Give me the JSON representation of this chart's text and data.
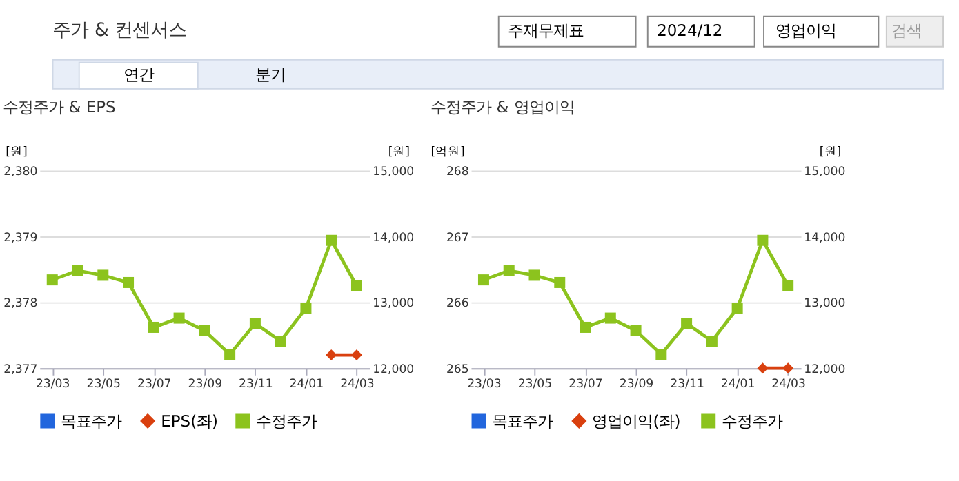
{
  "chart_data": [
    {
      "type": "other",
      "annotations": [
        "주가 & 컨센서스",
        "주재무제표",
        "2024/12",
        "영업이익",
        "검색",
        "연간",
        "분기"
      ]
    },
    {
      "type": "line",
      "title": "수정주가 & EPS",
      "ylabel": "[원]",
      "y2label": "[원]",
      "categories": [
        "23/03",
        null,
        "23/05",
        null,
        "23/07",
        null,
        "23/09",
        null,
        "23/11",
        null,
        "24/01",
        null,
        "24/03"
      ],
      "ylim": [
        2377,
        2380
      ],
      "yticks": [
        {
          "value": 2377,
          "label": "2,377"
        },
        {
          "value": 2378,
          "label": "2,378"
        },
        {
          "value": 2379,
          "label": "2,379"
        },
        {
          "value": 2380,
          "label": "2,380"
        }
      ],
      "y2lim": [
        12000,
        15000
      ],
      "y2ticks": [
        {
          "value": 12000,
          "label": "12,000"
        },
        {
          "value": 13000,
          "label": "13,000"
        },
        {
          "value": 14000,
          "label": "14,000"
        },
        {
          "value": 15000,
          "label": "15,000"
        }
      ],
      "grid": "y",
      "legend": "bottom",
      "series": [
        {
          "name": "목표주가",
          "color": "#2266dd",
          "marker": "square",
          "values": [
            null,
            null,
            null,
            null,
            null,
            null,
            null,
            null,
            null,
            null,
            null,
            null,
            null
          ]
        },
        {
          "name": "EPS(좌)",
          "color": "#d9400f",
          "marker": "diamond",
          "values": [
            null,
            null,
            null,
            null,
            null,
            null,
            null,
            null,
            null,
            null,
            null,
            2377.2,
            2377.2
          ]
        },
        {
          "name": "수정주가",
          "color": "#8cc31e",
          "marker": "square",
          "axis": "y2",
          "values": [
            13340,
            13480,
            13410,
            13300,
            12620,
            12760,
            12570,
            12210,
            12680,
            12410,
            12910,
            13940,
            13250
          ]
        }
      ]
    },
    {
      "type": "line",
      "title": "수정주가 & 영업이익",
      "ylabel": "[억원]",
      "y2label": "[원]",
      "categories": [
        "23/03",
        null,
        "23/05",
        null,
        "23/07",
        null,
        "23/09",
        null,
        "23/11",
        null,
        "24/01",
        null,
        "24/03"
      ],
      "ylim": [
        265,
        268
      ],
      "yticks": [
        265,
        266,
        267,
        268
      ],
      "y2lim": [
        12000,
        15000
      ],
      "y2ticks": [
        {
          "value": 12000,
          "label": "12,000"
        },
        {
          "value": 13000,
          "label": "13,000"
        },
        {
          "value": 14000,
          "label": "14,000"
        },
        {
          "value": 15000,
          "label": "15,000"
        }
      ],
      "grid": "y",
      "legend": "bottom",
      "series": [
        {
          "name": "목표주가",
          "color": "#2266dd",
          "marker": "square",
          "values": [
            null,
            null,
            null,
            null,
            null,
            null,
            null,
            null,
            null,
            null,
            null,
            null,
            null
          ]
        },
        {
          "name": "영업이익(좌)",
          "color": "#d9400f",
          "marker": "diamond",
          "values": [
            null,
            null,
            null,
            null,
            null,
            null,
            null,
            null,
            null,
            null,
            null,
            265,
            265
          ]
        },
        {
          "name": "수정주가",
          "color": "#8cc31e",
          "marker": "square",
          "axis": "y2",
          "values": [
            13340,
            13480,
            13410,
            13300,
            12620,
            12760,
            12570,
            12210,
            12680,
            12410,
            12910,
            13940,
            13250
          ]
        }
      ]
    }
  ]
}
